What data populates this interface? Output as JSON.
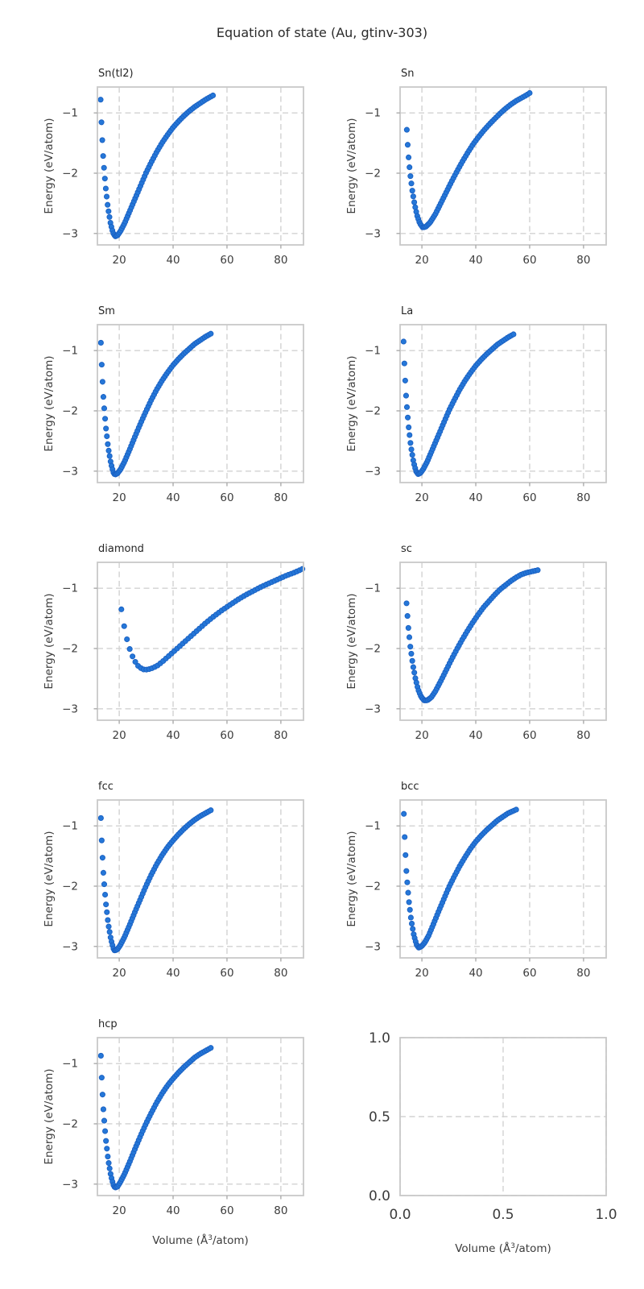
{
  "figure": {
    "suptitle": "Equation of state (Au, gtinv-303)",
    "ylabel": "Energy (eV/atom)",
    "xlabel": {
      "text": "Volume (Å³/atom)",
      "prefix": "Volume (Å",
      "sup": "3",
      "suffix": "/atom)"
    },
    "colors": {
      "marker_fill": "#2577d8",
      "marker_edge": "#1a60c2",
      "grid": "#d2d2d2",
      "spine": "#c9c9c9",
      "tick_mark": "#ababab",
      "title_text": "#262626",
      "tick_text": "#3c3c3c"
    }
  },
  "chart_data": [
    {
      "type": "scatter",
      "title": "Sn(tl2)",
      "ylabel": "Energy (eV/atom)",
      "show_xlabel": false,
      "xlim": [
        11.9,
        88.4
      ],
      "ylim": [
        -3.19,
        -0.57
      ],
      "xticks": [
        20,
        40,
        60,
        80
      ],
      "xtick_labels": [
        "20",
        "40",
        "60",
        "80"
      ],
      "yticks": [
        -1,
        -2,
        -3
      ],
      "ytick_labels": [
        "−1",
        "−2",
        "−3"
      ],
      "n_points": 80,
      "spacing": "cbrt",
      "samples": [
        [
          13.1,
          -0.78
        ],
        [
          13.5,
          -1.27
        ],
        [
          14.1,
          -1.77
        ],
        [
          14.9,
          -2.21
        ],
        [
          15.8,
          -2.57
        ],
        [
          16.8,
          -2.84
        ],
        [
          17.7,
          -2.99
        ],
        [
          18.5,
          -3.05
        ],
        [
          19.4,
          -3.03
        ],
        [
          20.5,
          -2.96
        ],
        [
          22,
          -2.83
        ],
        [
          24,
          -2.62
        ],
        [
          26,
          -2.41
        ],
        [
          28,
          -2.2
        ],
        [
          30,
          -1.99
        ],
        [
          32,
          -1.81
        ],
        [
          34,
          -1.64
        ],
        [
          36,
          -1.49
        ],
        [
          38,
          -1.36
        ],
        [
          40,
          -1.24
        ],
        [
          42,
          -1.14
        ],
        [
          44,
          -1.05
        ],
        [
          46,
          -0.97
        ],
        [
          48,
          -0.9
        ],
        [
          50,
          -0.84
        ],
        [
          52,
          -0.78
        ],
        [
          54.8,
          -0.71
        ]
      ]
    },
    {
      "type": "scatter",
      "title": "Sn",
      "ylabel": "Energy (eV/atom)",
      "show_xlabel": false,
      "xlim": [
        11.9,
        88.4
      ],
      "ylim": [
        -3.19,
        -0.57
      ],
      "xticks": [
        20,
        40,
        60,
        80
      ],
      "xtick_labels": [
        "20",
        "40",
        "60",
        "80"
      ],
      "yticks": [
        -1,
        -2,
        -3
      ],
      "ytick_labels": [
        "−1",
        "−2",
        "−3"
      ],
      "n_points": 82,
      "spacing": "cbrt",
      "samples": [
        [
          14.4,
          -1.28
        ],
        [
          14.9,
          -1.66
        ],
        [
          15.6,
          -2.0
        ],
        [
          16.4,
          -2.28
        ],
        [
          17.3,
          -2.52
        ],
        [
          18.2,
          -2.7
        ],
        [
          19.2,
          -2.83
        ],
        [
          20.3,
          -2.9
        ],
        [
          21.4,
          -2.89
        ],
        [
          23,
          -2.82
        ],
        [
          25,
          -2.68
        ],
        [
          27,
          -2.5
        ],
        [
          29,
          -2.32
        ],
        [
          31,
          -2.14
        ],
        [
          33,
          -1.97
        ],
        [
          35,
          -1.81
        ],
        [
          37,
          -1.66
        ],
        [
          39,
          -1.52
        ],
        [
          41,
          -1.4
        ],
        [
          43,
          -1.29
        ],
        [
          45,
          -1.19
        ],
        [
          47,
          -1.1
        ],
        [
          49,
          -1.01
        ],
        [
          51,
          -0.93
        ],
        [
          53,
          -0.86
        ],
        [
          55,
          -0.8
        ],
        [
          57,
          -0.75
        ],
        [
          59,
          -0.7
        ],
        [
          60,
          -0.67
        ]
      ]
    },
    {
      "type": "scatter",
      "title": "Sm",
      "ylabel": "Energy (eV/atom)",
      "show_xlabel": false,
      "xlim": [
        11.9,
        88.4
      ],
      "ylim": [
        -3.19,
        -0.57
      ],
      "xticks": [
        20,
        40,
        60,
        80
      ],
      "xtick_labels": [
        "20",
        "40",
        "60",
        "80"
      ],
      "yticks": [
        -1,
        -2,
        -3
      ],
      "ytick_labels": [
        "−1",
        "−2",
        "−3"
      ],
      "n_points": 80,
      "spacing": "cbrt",
      "samples": [
        [
          13.2,
          -0.87
        ],
        [
          13.6,
          -1.35
        ],
        [
          14.2,
          -1.83
        ],
        [
          15.0,
          -2.26
        ],
        [
          15.9,
          -2.61
        ],
        [
          16.9,
          -2.87
        ],
        [
          17.8,
          -3.02
        ],
        [
          18.4,
          -3.06
        ],
        [
          19.3,
          -3.04
        ],
        [
          20.5,
          -2.97
        ],
        [
          22,
          -2.84
        ],
        [
          24,
          -2.63
        ],
        [
          26,
          -2.41
        ],
        [
          28,
          -2.2
        ],
        [
          30,
          -2.0
        ],
        [
          32,
          -1.81
        ],
        [
          34,
          -1.64
        ],
        [
          36,
          -1.49
        ],
        [
          38,
          -1.36
        ],
        [
          40,
          -1.24
        ],
        [
          42,
          -1.14
        ],
        [
          44,
          -1.05
        ],
        [
          46,
          -0.97
        ],
        [
          48,
          -0.89
        ],
        [
          50,
          -0.83
        ],
        [
          52,
          -0.77
        ],
        [
          54,
          -0.72
        ]
      ]
    },
    {
      "type": "scatter",
      "title": "La",
      "ylabel": "Energy (eV/atom)",
      "show_xlabel": false,
      "xlim": [
        11.9,
        88.4
      ],
      "ylim": [
        -3.19,
        -0.57
      ],
      "xticks": [
        20,
        40,
        60,
        80
      ],
      "xtick_labels": [
        "20",
        "40",
        "60",
        "80"
      ],
      "yticks": [
        -1,
        -2,
        -3
      ],
      "ytick_labels": [
        "−1",
        "−2",
        "−3"
      ],
      "n_points": 80,
      "spacing": "cbrt",
      "samples": [
        [
          13.2,
          -0.85
        ],
        [
          13.6,
          -1.33
        ],
        [
          14.2,
          -1.81
        ],
        [
          15.0,
          -2.24
        ],
        [
          15.9,
          -2.59
        ],
        [
          16.9,
          -2.85
        ],
        [
          17.8,
          -3.0
        ],
        [
          18.6,
          -3.05
        ],
        [
          19.5,
          -3.03
        ],
        [
          20.6,
          -2.96
        ],
        [
          22,
          -2.84
        ],
        [
          24,
          -2.63
        ],
        [
          26,
          -2.42
        ],
        [
          28,
          -2.21
        ],
        [
          30,
          -2.0
        ],
        [
          32,
          -1.82
        ],
        [
          34,
          -1.65
        ],
        [
          36,
          -1.5
        ],
        [
          38,
          -1.37
        ],
        [
          40,
          -1.25
        ],
        [
          42,
          -1.15
        ],
        [
          44,
          -1.06
        ],
        [
          46,
          -0.98
        ],
        [
          48,
          -0.9
        ],
        [
          50,
          -0.84
        ],
        [
          52,
          -0.78
        ],
        [
          54,
          -0.73
        ]
      ]
    },
    {
      "type": "scatter",
      "title": "diamond",
      "ylabel": "Energy (eV/atom)",
      "show_xlabel": false,
      "xlim": [
        11.9,
        88.4
      ],
      "ylim": [
        -3.19,
        -0.57
      ],
      "xticks": [
        20,
        40,
        60,
        80
      ],
      "xtick_labels": [
        "20",
        "40",
        "60",
        "80"
      ],
      "yticks": [
        -1,
        -2,
        -3
      ],
      "ytick_labels": [
        "−1",
        "−2",
        "−3"
      ],
      "n_points": 66,
      "spacing": "linear",
      "samples": [
        [
          20.8,
          -1.35
        ],
        [
          21.5,
          -1.55
        ],
        [
          22.3,
          -1.74
        ],
        [
          23.2,
          -1.91
        ],
        [
          24.2,
          -2.05
        ],
        [
          25.2,
          -2.16
        ],
        [
          26.2,
          -2.24
        ],
        [
          27.2,
          -2.3
        ],
        [
          28.2,
          -2.33
        ],
        [
          29.2,
          -2.35
        ],
        [
          30.5,
          -2.35
        ],
        [
          32,
          -2.33
        ],
        [
          34,
          -2.29
        ],
        [
          36,
          -2.22
        ],
        [
          38,
          -2.14
        ],
        [
          40,
          -2.06
        ],
        [
          42,
          -1.98
        ],
        [
          44,
          -1.9
        ],
        [
          46,
          -1.82
        ],
        [
          48,
          -1.74
        ],
        [
          50,
          -1.66
        ],
        [
          52,
          -1.58
        ],
        [
          55,
          -1.47
        ],
        [
          58,
          -1.37
        ],
        [
          61,
          -1.28
        ],
        [
          64,
          -1.19
        ],
        [
          67,
          -1.11
        ],
        [
          70,
          -1.04
        ],
        [
          73,
          -0.97
        ],
        [
          76,
          -0.91
        ],
        [
          79,
          -0.85
        ],
        [
          82,
          -0.79
        ],
        [
          85,
          -0.74
        ],
        [
          88,
          -0.68
        ]
      ]
    },
    {
      "type": "scatter",
      "title": "sc",
      "ylabel": "Energy (eV/atom)",
      "show_xlabel": false,
      "xlim": [
        11.9,
        88.4
      ],
      "ylim": [
        -3.19,
        -0.57
      ],
      "xticks": [
        20,
        40,
        60,
        80
      ],
      "xtick_labels": [
        "20",
        "40",
        "60",
        "80"
      ],
      "yticks": [
        -1,
        -2,
        -3
      ],
      "ytick_labels": [
        "−1",
        "−2",
        "−3"
      ],
      "n_points": 82,
      "spacing": "cbrt",
      "samples": [
        [
          14.3,
          -1.25
        ],
        [
          14.9,
          -1.62
        ],
        [
          15.7,
          -1.97
        ],
        [
          16.6,
          -2.26
        ],
        [
          17.6,
          -2.5
        ],
        [
          18.6,
          -2.68
        ],
        [
          19.7,
          -2.8
        ],
        [
          20.8,
          -2.86
        ],
        [
          22,
          -2.86
        ],
        [
          23.5,
          -2.81
        ],
        [
          25,
          -2.71
        ],
        [
          27,
          -2.54
        ],
        [
          29,
          -2.36
        ],
        [
          31,
          -2.18
        ],
        [
          33,
          -2.01
        ],
        [
          35,
          -1.85
        ],
        [
          37,
          -1.7
        ],
        [
          39,
          -1.56
        ],
        [
          41,
          -1.43
        ],
        [
          43,
          -1.31
        ],
        [
          45,
          -1.21
        ],
        [
          47,
          -1.11
        ],
        [
          49,
          -1.02
        ],
        [
          51,
          -0.95
        ],
        [
          53,
          -0.88
        ],
        [
          55,
          -0.82
        ],
        [
          57,
          -0.77
        ],
        [
          59,
          -0.74
        ],
        [
          61,
          -0.72
        ],
        [
          63,
          -0.7
        ]
      ]
    },
    {
      "type": "scatter",
      "title": "fcc",
      "ylabel": "Energy (eV/atom)",
      "show_xlabel": false,
      "xlim": [
        11.9,
        88.4
      ],
      "ylim": [
        -3.19,
        -0.57
      ],
      "xticks": [
        20,
        40,
        60,
        80
      ],
      "xtick_labels": [
        "20",
        "40",
        "60",
        "80"
      ],
      "yticks": [
        -1,
        -2,
        -3
      ],
      "ytick_labels": [
        "−1",
        "−2",
        "−3"
      ],
      "n_points": 80,
      "spacing": "cbrt",
      "samples": [
        [
          13.2,
          -0.87
        ],
        [
          13.6,
          -1.36
        ],
        [
          14.2,
          -1.84
        ],
        [
          15.0,
          -2.27
        ],
        [
          15.9,
          -2.62
        ],
        [
          16.9,
          -2.88
        ],
        [
          17.8,
          -3.03
        ],
        [
          18.3,
          -3.07
        ],
        [
          19.3,
          -3.05
        ],
        [
          20.4,
          -2.98
        ],
        [
          22,
          -2.84
        ],
        [
          24,
          -2.63
        ],
        [
          26,
          -2.41
        ],
        [
          28,
          -2.2
        ],
        [
          30,
          -1.99
        ],
        [
          32,
          -1.8
        ],
        [
          34,
          -1.63
        ],
        [
          36,
          -1.48
        ],
        [
          38,
          -1.35
        ],
        [
          40,
          -1.24
        ],
        [
          42,
          -1.14
        ],
        [
          44,
          -1.05
        ],
        [
          46,
          -0.97
        ],
        [
          48,
          -0.9
        ],
        [
          50,
          -0.84
        ],
        [
          52,
          -0.79
        ],
        [
          54,
          -0.74
        ]
      ]
    },
    {
      "type": "scatter",
      "title": "bcc",
      "ylabel": "Energy (eV/atom)",
      "show_xlabel": false,
      "xlim": [
        11.9,
        88.4
      ],
      "ylim": [
        -3.19,
        -0.57
      ],
      "xticks": [
        20,
        40,
        60,
        80
      ],
      "xtick_labels": [
        "20",
        "40",
        "60",
        "80"
      ],
      "yticks": [
        -1,
        -2,
        -3
      ],
      "ytick_labels": [
        "−1",
        "−2",
        "−3"
      ],
      "n_points": 80,
      "spacing": "cbrt",
      "samples": [
        [
          13.3,
          -0.8
        ],
        [
          13.7,
          -1.3
        ],
        [
          14.3,
          -1.8
        ],
        [
          15.1,
          -2.22
        ],
        [
          16.0,
          -2.56
        ],
        [
          17.0,
          -2.81
        ],
        [
          18.0,
          -2.97
        ],
        [
          18.8,
          -3.02
        ],
        [
          19.8,
          -3.0
        ],
        [
          21,
          -2.94
        ],
        [
          22.5,
          -2.82
        ],
        [
          24,
          -2.66
        ],
        [
          26,
          -2.44
        ],
        [
          28,
          -2.23
        ],
        [
          30,
          -2.02
        ],
        [
          32,
          -1.84
        ],
        [
          34,
          -1.67
        ],
        [
          36,
          -1.52
        ],
        [
          38,
          -1.38
        ],
        [
          40,
          -1.26
        ],
        [
          42,
          -1.16
        ],
        [
          44,
          -1.07
        ],
        [
          46,
          -0.99
        ],
        [
          48,
          -0.91
        ],
        [
          50,
          -0.85
        ],
        [
          52,
          -0.79
        ],
        [
          54,
          -0.75
        ],
        [
          55,
          -0.73
        ]
      ]
    },
    {
      "type": "scatter",
      "title": "hcp",
      "ylabel": "Energy (eV/atom)",
      "show_xlabel": true,
      "xlim": [
        11.9,
        88.4
      ],
      "ylim": [
        -3.19,
        -0.57
      ],
      "xticks": [
        20,
        40,
        60,
        80
      ],
      "xtick_labels": [
        "20",
        "40",
        "60",
        "80"
      ],
      "yticks": [
        -1,
        -2,
        -3
      ],
      "ytick_labels": [
        "−1",
        "−2",
        "−3"
      ],
      "n_points": 80,
      "spacing": "cbrt",
      "samples": [
        [
          13.2,
          -0.87
        ],
        [
          13.6,
          -1.35
        ],
        [
          14.2,
          -1.82
        ],
        [
          15.0,
          -2.25
        ],
        [
          15.9,
          -2.6
        ],
        [
          16.9,
          -2.86
        ],
        [
          17.8,
          -3.01
        ],
        [
          18.4,
          -3.06
        ],
        [
          19.4,
          -3.04
        ],
        [
          20.5,
          -2.96
        ],
        [
          22,
          -2.83
        ],
        [
          24,
          -2.62
        ],
        [
          26,
          -2.4
        ],
        [
          28,
          -2.19
        ],
        [
          30,
          -1.99
        ],
        [
          32,
          -1.81
        ],
        [
          34,
          -1.64
        ],
        [
          36,
          -1.49
        ],
        [
          38,
          -1.36
        ],
        [
          40,
          -1.25
        ],
        [
          42,
          -1.15
        ],
        [
          44,
          -1.06
        ],
        [
          46,
          -0.98
        ],
        [
          48,
          -0.9
        ],
        [
          50,
          -0.84
        ],
        [
          52,
          -0.79
        ],
        [
          54,
          -0.74
        ]
      ]
    },
    {
      "type": "empty",
      "title": "",
      "ylabel": "",
      "show_xlabel": true,
      "big_ticks": true,
      "xlim": [
        0,
        1
      ],
      "ylim": [
        0,
        1
      ],
      "xticks": [
        0,
        0.5,
        1
      ],
      "xtick_labels": [
        "0.0",
        "0.5",
        "1.0"
      ],
      "yticks": [
        0,
        0.5,
        1
      ],
      "ytick_labels": [
        "0.0",
        "0.5",
        "1.0"
      ],
      "n_points": 0,
      "spacing": "none",
      "samples": []
    }
  ]
}
